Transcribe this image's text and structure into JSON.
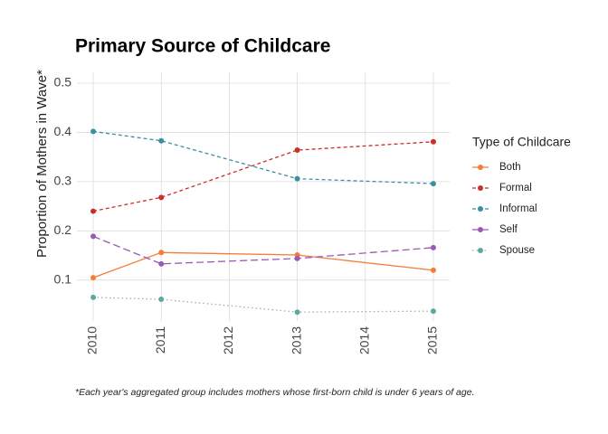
{
  "chart_data": {
    "type": "line",
    "title": "Primary Source of Childcare",
    "y_label": "Proportion of Mothers in Wave*",
    "footnote": "*Each year's aggregated group includes mothers whose first-born child is under 6 years of age.",
    "legend_title": "Type of Childcare",
    "legend": "right",
    "grid": true,
    "x": [
      2010,
      2011,
      2013,
      2015
    ],
    "xlim": [
      2009.76,
      2015.24
    ],
    "xticks": [
      2010,
      2011,
      2012,
      2013,
      2014,
      2015
    ],
    "ylim": [
      0.017,
      0.522
    ],
    "yticks": [
      0.1,
      0.2,
      0.3,
      0.4,
      0.5
    ],
    "series": [
      {
        "name": "Both",
        "color": "#f47d3a",
        "linestyle": "solid",
        "values": [
          0.105,
          0.156,
          0.151,
          0.12
        ]
      },
      {
        "name": "Formal",
        "color": "#c9302c",
        "linestyle": "dashed",
        "values": [
          0.24,
          0.268,
          0.364,
          0.381
        ]
      },
      {
        "name": "Informal",
        "color": "#3a8fa0",
        "linestyle": "dashed",
        "values": [
          0.402,
          0.383,
          0.306,
          0.296
        ]
      },
      {
        "name": "Self",
        "color": "#9b59b6",
        "linestyle": "longdash",
        "values": [
          0.189,
          0.133,
          0.144,
          0.166
        ]
      },
      {
        "name": "Spouse",
        "color": "#5fa8a0",
        "linestyle": "dotted",
        "values": [
          0.065,
          0.061,
          0.035,
          0.037
        ]
      }
    ]
  }
}
